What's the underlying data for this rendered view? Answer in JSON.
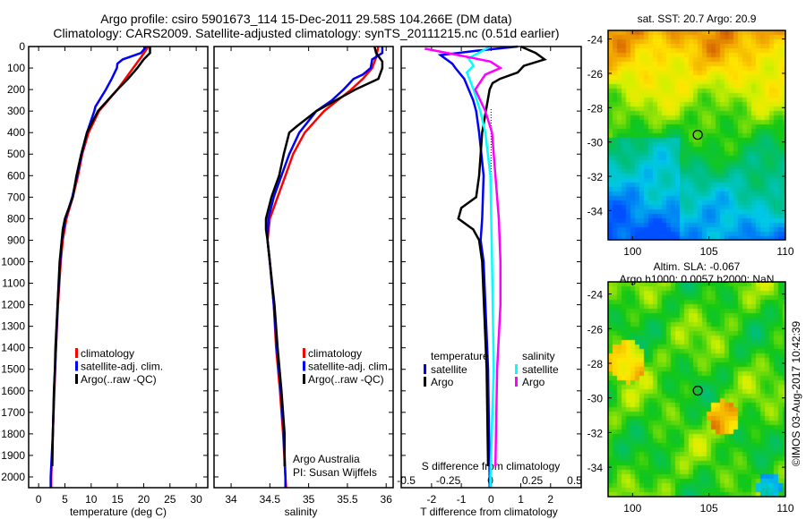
{
  "title": {
    "line1": "Argo profile: csiro 5901673_114 15-Dec-2011 29.58S 104.266E (DM data)",
    "line2": "Climatology: CARS2009. Satellite-adjusted climatology: synTS_20111215.nc (0.51d earlier)"
  },
  "colors": {
    "climatology": "#ff0000",
    "satellite": "#0000ff",
    "argo": "#000000",
    "sal_satellite": "#00ffff",
    "sal_argo": "#ff00ff"
  },
  "chart_data": [
    {
      "type": "line",
      "id": "temperature",
      "xlabel": "temperature (deg C)",
      "ylabel": "",
      "xlim": [
        -1.9,
        32.2
      ],
      "ylim": [
        2050,
        0
      ],
      "xticks": [
        0,
        5,
        10,
        15,
        20,
        25,
        30
      ],
      "yticks": [
        0,
        100,
        200,
        300,
        400,
        500,
        600,
        700,
        800,
        900,
        1000,
        1100,
        1200,
        1300,
        1400,
        1500,
        1600,
        1700,
        1800,
        1900,
        2000
      ],
      "legend": [
        "climatology",
        "satellite-adj. clim.",
        "Argo(..raw -QC)"
      ],
      "legend_position": "lower-center",
      "series": [
        {
          "name": "climatology",
          "color": "#ff0000",
          "depth": [
            0,
            50,
            100,
            150,
            200,
            300,
            400,
            500,
            600,
            700,
            800,
            900,
            1000,
            1200,
            1400,
            1600,
            1800,
            2000,
            2050
          ],
          "values": [
            20.9,
            19.5,
            18,
            16.5,
            15,
            11.5,
            9.5,
            8.3,
            7.5,
            6.5,
            5.3,
            4.6,
            4.2,
            3.7,
            3.3,
            3.0,
            2.7,
            2.4,
            2.4
          ]
        },
        {
          "name": "satellite-adj. clim.",
          "color": "#0000ff",
          "depth": [
            0,
            30,
            60,
            80,
            100,
            150,
            200,
            280,
            300,
            400,
            500,
            600,
            700,
            800,
            900,
            1000,
            1200,
            1400,
            1600,
            1800,
            2000,
            2050
          ],
          "values": [
            20.5,
            19.5,
            16,
            15,
            14.9,
            13.9,
            12.8,
            10.8,
            10.6,
            9.2,
            8.2,
            7.3,
            6.4,
            5.1,
            4.4,
            4.1,
            3.6,
            3.3,
            2.95,
            2.7,
            2.3,
            2.3
          ]
        },
        {
          "name": "Argo(..raw -QC)",
          "color": "#000000",
          "depth": [
            0,
            30,
            60,
            100,
            150,
            200,
            300,
            400,
            500,
            600,
            700,
            800,
            850,
            900,
            1000,
            1200,
            1400,
            1500,
            1600,
            1800,
            1950
          ],
          "values": [
            21.2,
            21.2,
            20,
            18.8,
            17,
            15,
            11.3,
            9.2,
            8.1,
            7.2,
            6.5,
            5,
            4.6,
            4.4,
            4.0,
            3.6,
            3.2,
            3.1,
            2.9,
            2.7,
            2.6
          ]
        }
      ]
    },
    {
      "type": "line",
      "id": "salinity",
      "xlabel": "salinity",
      "xlim": [
        33.78,
        36.09
      ],
      "ylim": [
        2050,
        0
      ],
      "xticks": [
        34,
        34.5,
        35,
        35.5,
        36
      ],
      "legend": [
        "climatology",
        "satellite-adj. clim.",
        "Argo(..raw -QC)"
      ],
      "legend_position": "lower-center",
      "annotation": [
        "Argo Australia",
        "PI: Susan Wijffels"
      ],
      "series": [
        {
          "name": "climatology",
          "color": "#ff0000",
          "depth": [
            0,
            50,
            100,
            150,
            200,
            300,
            400,
            500,
            600,
            700,
            800,
            900,
            1000,
            1200,
            1400,
            1600,
            1800,
            2000,
            2050
          ],
          "values": [
            35.9,
            35.87,
            35.82,
            35.7,
            35.55,
            35.2,
            34.95,
            34.8,
            34.7,
            34.6,
            34.5,
            34.47,
            34.5,
            34.55,
            34.58,
            34.63,
            34.67,
            34.7,
            34.71
          ]
        },
        {
          "name": "satellite-adj. clim.",
          "color": "#0000ff",
          "depth": [
            0,
            30,
            60,
            100,
            130,
            150,
            200,
            250,
            300,
            400,
            500,
            600,
            700,
            800,
            900,
            1000,
            1200,
            1400,
            1600,
            1800,
            2000,
            2050
          ],
          "values": [
            35.95,
            35.95,
            35.82,
            35.8,
            35.7,
            35.58,
            35.45,
            35.3,
            35.1,
            34.88,
            34.75,
            34.65,
            34.55,
            34.48,
            34.47,
            34.5,
            34.55,
            34.59,
            34.64,
            34.68,
            34.7,
            34.7
          ]
        },
        {
          "name": "Argo(..raw -QC)",
          "color": "#000000",
          "depth": [
            0,
            30,
            70,
            100,
            150,
            200,
            300,
            370,
            400,
            500,
            600,
            700,
            800,
            850,
            900,
            1000,
            1200,
            1400,
            1600,
            1800,
            1950
          ],
          "values": [
            35.85,
            35.87,
            35.95,
            35.95,
            35.9,
            35.6,
            35.1,
            34.85,
            34.75,
            34.68,
            34.62,
            34.52,
            34.45,
            34.45,
            34.47,
            34.5,
            34.56,
            34.6,
            34.65,
            34.69,
            34.69
          ]
        }
      ]
    },
    {
      "type": "line",
      "id": "differences",
      "xlabel": "T difference from climatology",
      "x2label": "S difference from climatology",
      "xlim": [
        -3.02,
        3.03
      ],
      "x2lim": [
        -0.53,
        0.54
      ],
      "ylim": [
        2050,
        0
      ],
      "xticks": [
        -2,
        -1,
        0,
        1,
        2
      ],
      "x2ticks": [
        "-0.5",
        "-0.25",
        "0",
        "0.25",
        "0.5"
      ],
      "legend_groups": [
        {
          "title": "temperature",
          "items": [
            {
              "label": "satellite",
              "color": "#0000ff"
            },
            {
              "label": "Argo",
              "color": "#000000"
            }
          ]
        },
        {
          "title": "salinity",
          "items": [
            {
              "label": "satellite",
              "color": "#00ffff"
            },
            {
              "label": "Argo",
              "color": "#ff00ff"
            }
          ]
        }
      ],
      "series": [
        {
          "name": "T satellite",
          "axis": "T",
          "color": "#0000ff",
          "depth": [
            0,
            20,
            40,
            80,
            100,
            150,
            250,
            300,
            400,
            600,
            800,
            900,
            1000,
            1500,
            2000,
            2050
          ],
          "values": [
            0.9,
            -0.5,
            -1.7,
            -1.3,
            -1.2,
            -0.9,
            -0.6,
            -0.5,
            -0.4,
            -0.25,
            -0.3,
            -0.35,
            -0.25,
            -0.1,
            -0.05,
            -0.05
          ]
        },
        {
          "name": "T Argo",
          "axis": "T",
          "color": "#000000",
          "depth": [
            0,
            30,
            60,
            90,
            120,
            150,
            170,
            200,
            400,
            600,
            700,
            750,
            800,
            850,
            900,
            1000,
            1500,
            1950
          ],
          "values": [
            1.0,
            1.5,
            1.8,
            1.1,
            0.9,
            0.3,
            0.05,
            -0.05,
            -0.3,
            -0.4,
            -0.5,
            -1.0,
            -1.1,
            -0.6,
            -0.4,
            -0.3,
            -0.15,
            -0.1
          ]
        },
        {
          "name": "S satellite",
          "axis": "S",
          "color": "#00ffff",
          "depth": [
            0,
            55,
            90,
            120,
            200,
            300,
            400,
            600,
            1000,
            1500,
            2000,
            2050
          ],
          "values": [
            0,
            -0.13,
            -0.1,
            -0.14,
            -0.1,
            -0.06,
            -0.03,
            0,
            0.01,
            0.02,
            0.0,
            0.0
          ]
        },
        {
          "name": "S Argo",
          "axis": "S",
          "color": "#ff00ff",
          "depth": [
            10,
            40,
            70,
            100,
            130,
            200,
            300,
            400,
            600,
            800,
            1000,
            1200,
            1500,
            1950
          ],
          "values": [
            -0.39,
            -0.19,
            0,
            0.06,
            -0.03,
            -0.09,
            -0.03,
            0.01,
            0.03,
            0.05,
            0.06,
            0.06,
            0.04,
            0.03
          ]
        }
      ]
    },
    {
      "type": "heatmap",
      "id": "sst-map",
      "title": "sat. SST: 20.7 Argo: 20.9",
      "xlim": [
        98.4,
        110
      ],
      "ylim": [
        -35.7,
        -23.5
      ],
      "xticks": [
        100,
        105,
        110
      ],
      "yticks": [
        -24,
        -26,
        -28,
        -30,
        -32,
        -34
      ],
      "marker": {
        "lon": 104.266,
        "lat": -29.58
      }
    },
    {
      "type": "heatmap",
      "id": "sla-map",
      "title": "Altim. SLA: -0.067",
      "subtitle": "Argo h1000: 0.0057 h2000: NaN",
      "xlim": [
        98.4,
        110
      ],
      "ylim": [
        -35.7,
        -23.3
      ],
      "xticks": [
        100,
        105,
        110
      ],
      "yticks": [
        -24,
        -26,
        -28,
        -30,
        -32,
        -34
      ],
      "marker": {
        "lon": 104.266,
        "lat": -29.58
      }
    }
  ],
  "footer": {
    "credit": "©IMOS 03-Aug-2017 10:42:39"
  }
}
